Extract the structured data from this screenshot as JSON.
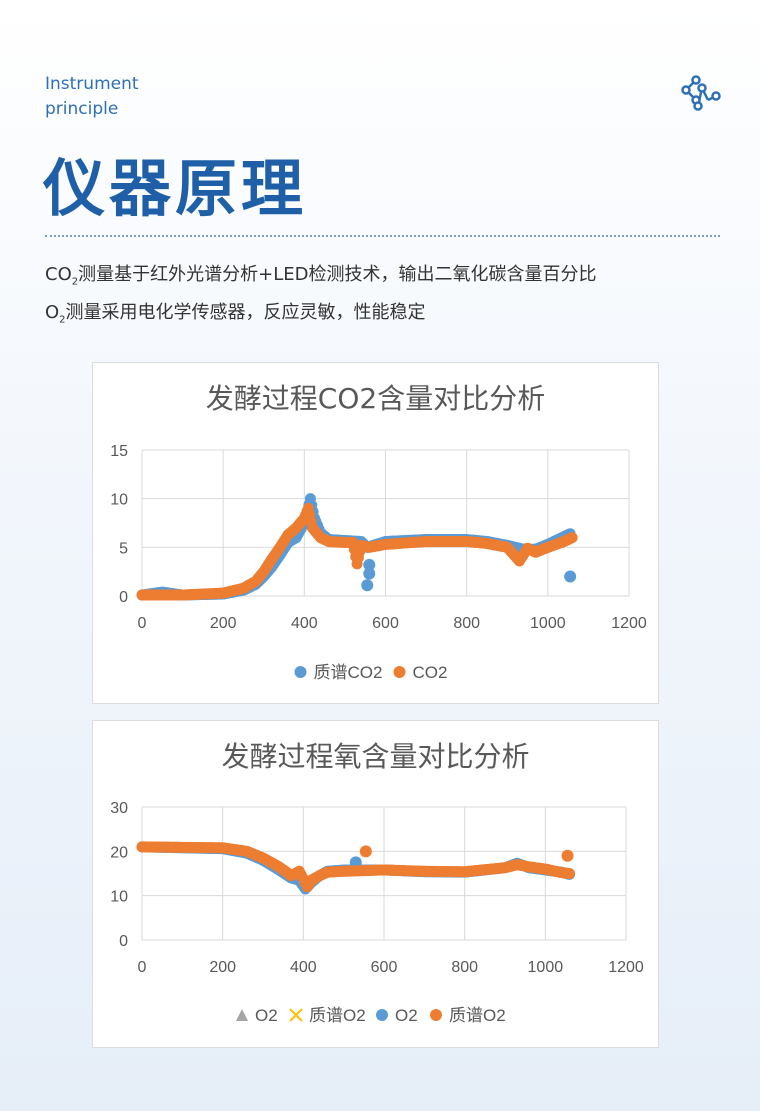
{
  "header": {
    "en_line1": "Instrument",
    "en_line2": "principle",
    "title": "仪器原理",
    "icon": "share-network-icon"
  },
  "description": {
    "line1_prefix": "CO",
    "line1_sub": "2",
    "line1_rest": "测量基于红外光谱分析+LED检测技术，输出二氧化碳含量百分比",
    "line2_prefix": "O",
    "line2_sub": "2",
    "line2_rest": "测量采用电化学传感器，反应灵敏，性能稳定"
  },
  "colors": {
    "accent": "#1f5fa8",
    "blue_series": "#5b9bd5",
    "orange_series": "#ed7d31"
  },
  "chart_data": [
    {
      "type": "scatter",
      "title": "发酵过程CO2含量对比分析",
      "xlim": [
        0,
        1200
      ],
      "ylim": [
        0,
        15
      ],
      "xticks": [
        "0",
        "200",
        "400",
        "600",
        "800",
        "1000",
        "1200"
      ],
      "yticks": [
        "0",
        "5",
        "10",
        "15"
      ],
      "grid": true,
      "legend": "bottom",
      "series": [
        {
          "name": "质谱CO2",
          "color": "#5b9bd5",
          "points": [
            [
              0,
              0.1
            ],
            [
              50,
              0.4
            ],
            [
              100,
              0.1
            ],
            [
              200,
              0.2
            ],
            [
              250,
              0.6
            ],
            [
              280,
              1.2
            ],
            [
              300,
              2.0
            ],
            [
              320,
              3.0
            ],
            [
              340,
              4.2
            ],
            [
              360,
              5.5
            ],
            [
              380,
              6.0
            ],
            [
              400,
              7.5
            ],
            [
              415,
              10
            ],
            [
              425,
              8
            ],
            [
              440,
              6.5
            ],
            [
              460,
              5.8
            ],
            [
              500,
              5.7
            ],
            [
              540,
              5.6
            ],
            [
              555,
              5.0
            ],
            [
              600,
              5.6
            ],
            [
              700,
              5.8
            ],
            [
              800,
              5.8
            ],
            [
              850,
              5.6
            ],
            [
              900,
              5.2
            ],
            [
              940,
              4.8
            ],
            [
              970,
              4.8
            ],
            [
              1000,
              5.3
            ],
            [
              1040,
              6.1
            ],
            [
              1055,
              6.4
            ]
          ],
          "outliers": [
            [
              555,
              1.1
            ],
            [
              560,
              2.3
            ],
            [
              560,
              3.2
            ],
            [
              1055,
              2.0
            ]
          ]
        },
        {
          "name": "CO2",
          "color": "#ed7d31",
          "points": [
            [
              0,
              0.1
            ],
            [
              100,
              0.1
            ],
            [
              200,
              0.3
            ],
            [
              250,
              0.8
            ],
            [
              280,
              1.5
            ],
            [
              300,
              2.5
            ],
            [
              320,
              3.8
            ],
            [
              340,
              5.0
            ],
            [
              360,
              6.3
            ],
            [
              380,
              7.0
            ],
            [
              400,
              8.0
            ],
            [
              410,
              9.0
            ],
            [
              420,
              7.0
            ],
            [
              440,
              6.0
            ],
            [
              460,
              5.6
            ],
            [
              500,
              5.5
            ],
            [
              520,
              5.5
            ],
            [
              530,
              3.3
            ],
            [
              540,
              5.2
            ],
            [
              560,
              5.0
            ],
            [
              600,
              5.3
            ],
            [
              700,
              5.6
            ],
            [
              800,
              5.6
            ],
            [
              850,
              5.4
            ],
            [
              900,
              5.0
            ],
            [
              930,
              3.6
            ],
            [
              950,
              4.9
            ],
            [
              970,
              4.5
            ],
            [
              1000,
              5.0
            ],
            [
              1040,
              5.6
            ],
            [
              1060,
              6.0
            ]
          ],
          "outliers": []
        }
      ]
    },
    {
      "type": "scatter",
      "title": "发酵过程氧含量对比分析",
      "xlim": [
        0,
        1200
      ],
      "ylim": [
        0,
        30
      ],
      "xticks": [
        "0",
        "200",
        "400",
        "600",
        "800",
        "1000",
        "1200"
      ],
      "yticks": [
        "0",
        "10",
        "20",
        "30"
      ],
      "grid": true,
      "legend": "bottom",
      "legend_entries": [
        {
          "name": "O2",
          "marker": "triangle",
          "color": "#a5a5a5"
        },
        {
          "name": "质谱O2",
          "marker": "x",
          "color": "#ffc000"
        },
        {
          "name": "O2",
          "marker": "circle",
          "color": "#5b9bd5"
        },
        {
          "name": "质谱O2",
          "marker": "circle",
          "color": "#ed7d31"
        }
      ],
      "series": [
        {
          "name": "O2",
          "color": "#5b9bd5",
          "points": [
            [
              0,
              21
            ],
            [
              200,
              20.6
            ],
            [
              260,
              19.6
            ],
            [
              300,
              18
            ],
            [
              340,
              15.8
            ],
            [
              370,
              14
            ],
            [
              390,
              13.5
            ],
            [
              405,
              11.5
            ],
            [
              420,
              13
            ],
            [
              440,
              14.5
            ],
            [
              460,
              15.5
            ],
            [
              500,
              15.8
            ],
            [
              600,
              15.8
            ],
            [
              700,
              15.4
            ],
            [
              800,
              15.3
            ],
            [
              900,
              16.3
            ],
            [
              930,
              17.3
            ],
            [
              960,
              16.3
            ],
            [
              1000,
              15.8
            ],
            [
              1040,
              15.3
            ],
            [
              1060,
              14.8
            ]
          ],
          "outliers": [
            [
              530,
              17.5
            ]
          ]
        },
        {
          "name": "质谱O2",
          "color": "#ed7d31",
          "points": [
            [
              0,
              21
            ],
            [
              200,
              20.8
            ],
            [
              260,
              20
            ],
            [
              300,
              18.5
            ],
            [
              340,
              16.5
            ],
            [
              370,
              14.5
            ],
            [
              390,
              15.5
            ],
            [
              410,
              12
            ],
            [
              420,
              13.5
            ],
            [
              440,
              14.5
            ],
            [
              460,
              15.3
            ],
            [
              500,
              15.5
            ],
            [
              600,
              15.8
            ],
            [
              700,
              15.5
            ],
            [
              800,
              15.4
            ],
            [
              900,
              16.3
            ],
            [
              930,
              17
            ],
            [
              960,
              16.5
            ],
            [
              1000,
              16
            ],
            [
              1040,
              15.2
            ],
            [
              1060,
              15
            ]
          ],
          "outliers": [
            [
              555,
              20
            ],
            [
              1055,
              19
            ]
          ]
        }
      ]
    }
  ]
}
